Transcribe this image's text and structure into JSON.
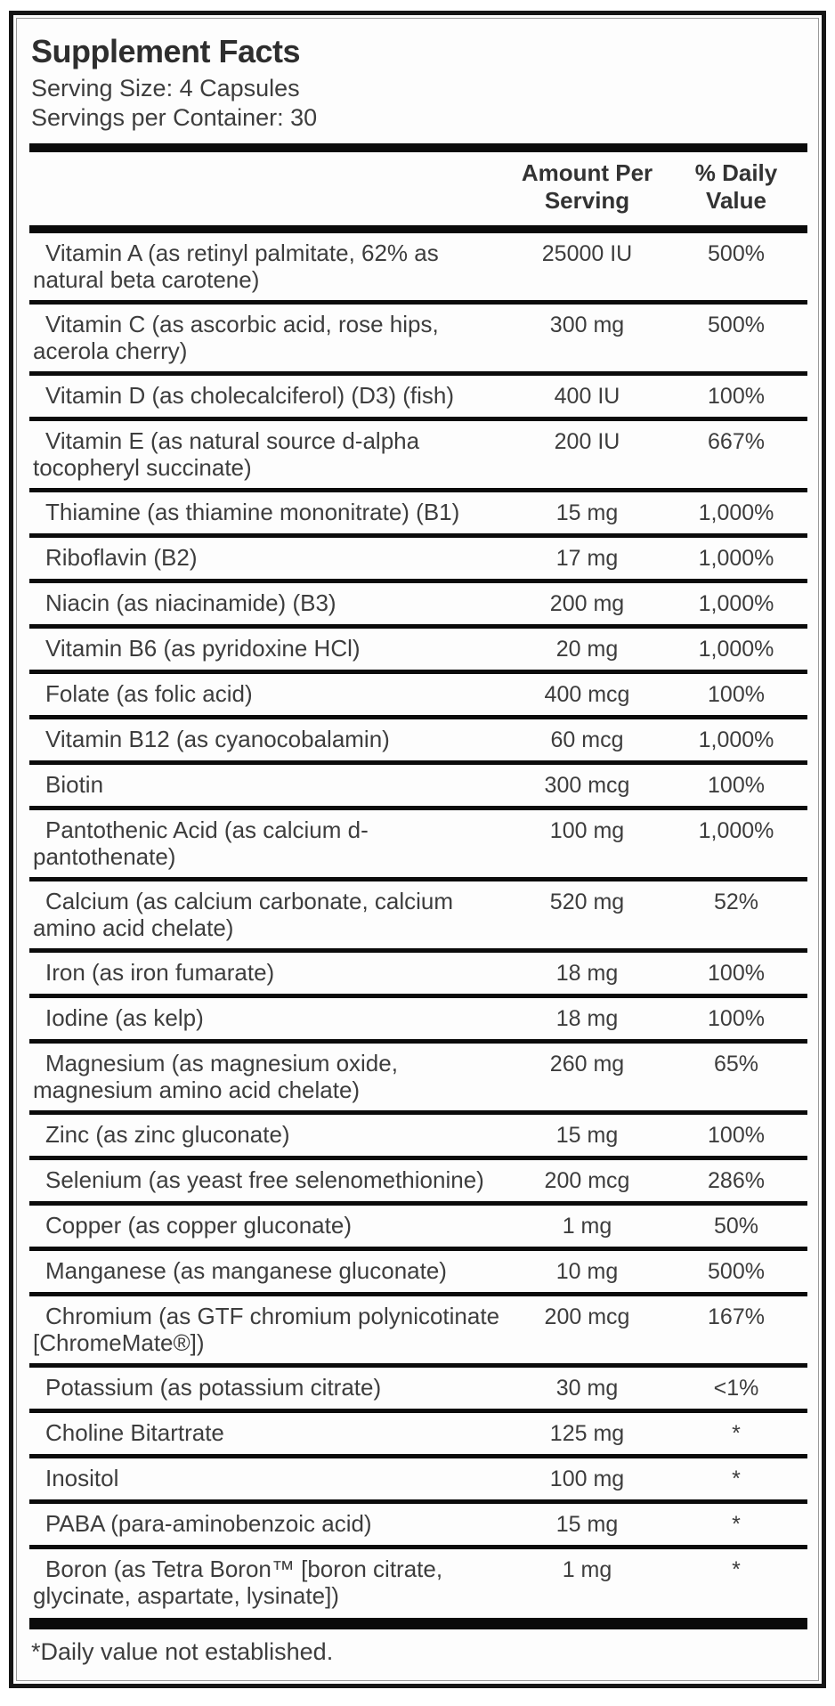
{
  "label": {
    "title": "Supplement Facts",
    "serving_size": "Serving Size: 4 Capsules",
    "servings_per_container": "Servings per Container: 30",
    "columns": {
      "amount": "Amount Per\nServing",
      "daily_value": "% Daily\nValue"
    },
    "rows": [
      {
        "name": "Vitamin A (as retinyl palmitate, 62% as natural beta carotene)",
        "amount": "25000 IU",
        "dv": "500%"
      },
      {
        "name": "Vitamin C (as ascorbic acid, rose hips, acerola cherry)",
        "amount": "300 mg",
        "dv": "500%"
      },
      {
        "name": "Vitamin D (as cholecalciferol) (D3) (fish)",
        "amount": "400 IU",
        "dv": "100%"
      },
      {
        "name": "Vitamin E (as natural source d-alpha tocopheryl succinate)",
        "amount": "200 IU",
        "dv": "667%"
      },
      {
        "name": "Thiamine (as thiamine mononitrate) (B1)",
        "amount": "15 mg",
        "dv": "1,000%"
      },
      {
        "name": "Riboflavin (B2)",
        "amount": "17 mg",
        "dv": "1,000%"
      },
      {
        "name": "Niacin (as niacinamide) (B3)",
        "amount": "200 mg",
        "dv": "1,000%"
      },
      {
        "name": "Vitamin B6 (as pyridoxine HCl)",
        "amount": "20 mg",
        "dv": "1,000%"
      },
      {
        "name": "Folate (as folic acid)",
        "amount": "400 mcg",
        "dv": "100%"
      },
      {
        "name": "Vitamin B12 (as cyanocobalamin)",
        "amount": "60 mcg",
        "dv": "1,000%"
      },
      {
        "name": "Biotin",
        "amount": "300 mcg",
        "dv": "100%"
      },
      {
        "name": "Pantothenic Acid (as calcium d-pantothenate)",
        "amount": "100 mg",
        "dv": "1,000%"
      },
      {
        "name": "Calcium (as calcium carbonate, calcium amino acid chelate)",
        "amount": "520 mg",
        "dv": "52%"
      },
      {
        "name": "Iron (as iron fumarate)",
        "amount": "18 mg",
        "dv": "100%"
      },
      {
        "name": "Iodine (as kelp)",
        "amount": "18 mg",
        "dv": "100%"
      },
      {
        "name": "Magnesium (as magnesium oxide, magnesium amino acid chelate)",
        "amount": "260 mg",
        "dv": "65%"
      },
      {
        "name": "Zinc (as zinc gluconate)",
        "amount": "15 mg",
        "dv": "100%"
      },
      {
        "name": "Selenium (as yeast free selenomethionine)",
        "amount": "200 mcg",
        "dv": "286%"
      },
      {
        "name": "Copper (as copper gluconate)",
        "amount": "1 mg",
        "dv": "50%"
      },
      {
        "name": "Manganese (as manganese gluconate)",
        "amount": "10 mg",
        "dv": "500%"
      },
      {
        "name": "Chromium (as GTF chromium polynicotinate [ChromeMate®])",
        "amount": "200 mcg",
        "dv": "167%"
      },
      {
        "name": "Potassium (as potassium citrate)",
        "amount": "30 mg",
        "dv": "<1%"
      },
      {
        "name": "Choline Bitartrate",
        "amount": "125 mg",
        "dv": "*"
      },
      {
        "name": "Inositol",
        "amount": "100 mg",
        "dv": "*"
      },
      {
        "name": "PABA (para-aminobenzoic acid)",
        "amount": "15 mg",
        "dv": "*"
      },
      {
        "name": "Boron (as Tetra Boron™ [boron citrate, glycinate, aspartate, lysinate])",
        "amount": "1 mg",
        "dv": "*"
      }
    ],
    "footnote": "*Daily value not established.",
    "colors": {
      "text": "#3d3d3d",
      "rule": "#0b0b0b",
      "label_background": "#fdfdfd",
      "inner_border": "#9a9a9a"
    }
  }
}
